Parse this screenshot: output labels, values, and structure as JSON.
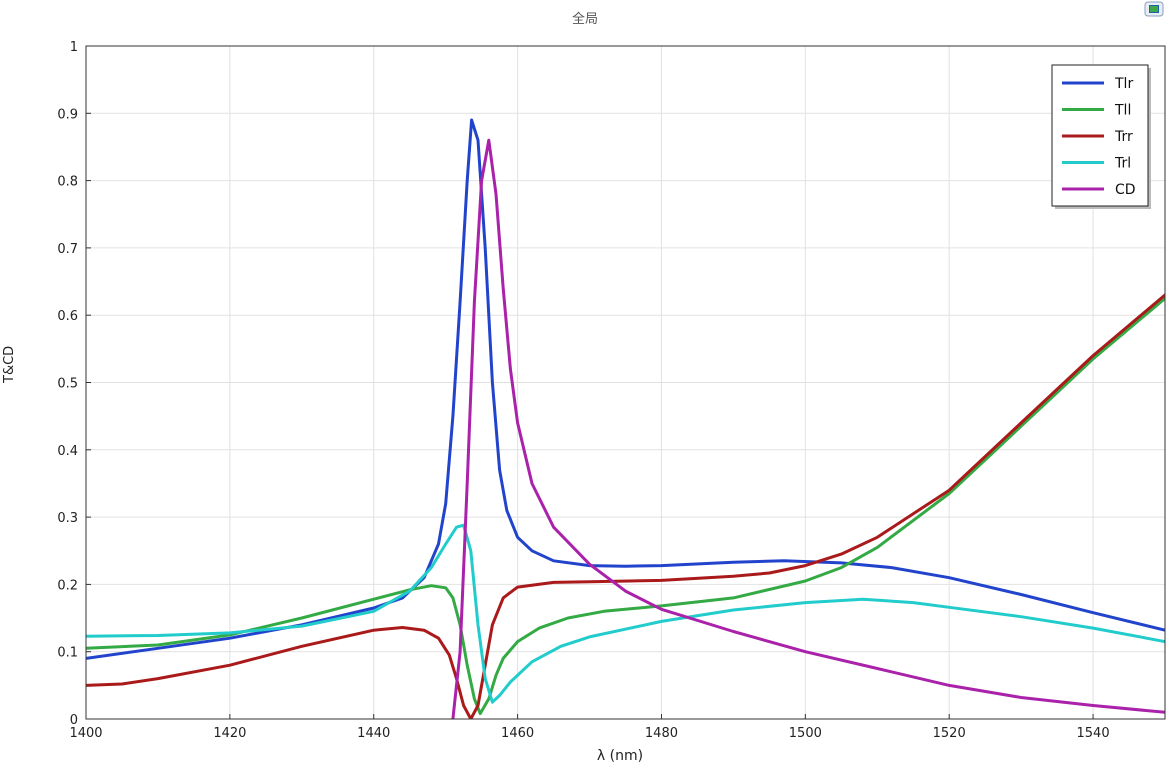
{
  "chart_data": {
    "type": "line",
    "title": "全局",
    "xlabel": "λ (nm)",
    "ylabel": "T&CD",
    "xlim": [
      1400,
      1550
    ],
    "ylim": [
      0,
      1
    ],
    "x_ticks": [
      1400,
      1420,
      1440,
      1460,
      1480,
      1500,
      1520,
      1540
    ],
    "y_ticks": [
      0,
      0.1,
      0.2,
      0.3,
      0.4,
      0.5,
      0.6,
      0.7,
      0.8,
      0.9,
      1
    ],
    "grid": true,
    "legend_position": "top-right",
    "series": [
      {
        "name": "Tlr",
        "color": "#2244cc",
        "points": [
          [
            1400,
            0.09
          ],
          [
            1410,
            0.105
          ],
          [
            1420,
            0.12
          ],
          [
            1430,
            0.14
          ],
          [
            1440,
            0.165
          ],
          [
            1444,
            0.18
          ],
          [
            1447,
            0.21
          ],
          [
            1449,
            0.26
          ],
          [
            1450,
            0.32
          ],
          [
            1451,
            0.45
          ],
          [
            1452,
            0.62
          ],
          [
            1453,
            0.8
          ],
          [
            1453.6,
            0.89
          ],
          [
            1454.5,
            0.86
          ],
          [
            1455.5,
            0.7
          ],
          [
            1456.5,
            0.5
          ],
          [
            1457.5,
            0.37
          ],
          [
            1458.5,
            0.31
          ],
          [
            1460,
            0.27
          ],
          [
            1462,
            0.25
          ],
          [
            1465,
            0.235
          ],
          [
            1470,
            0.228
          ],
          [
            1475,
            0.227
          ],
          [
            1480,
            0.228
          ],
          [
            1490,
            0.233
          ],
          [
            1497,
            0.235
          ],
          [
            1505,
            0.232
          ],
          [
            1512,
            0.225
          ],
          [
            1520,
            0.21
          ],
          [
            1530,
            0.185
          ],
          [
            1540,
            0.158
          ],
          [
            1550,
            0.132
          ]
        ]
      },
      {
        "name": "Tll",
        "color": "#33aa44",
        "points": [
          [
            1400,
            0.105
          ],
          [
            1410,
            0.11
          ],
          [
            1420,
            0.125
          ],
          [
            1430,
            0.15
          ],
          [
            1440,
            0.178
          ],
          [
            1445,
            0.192
          ],
          [
            1448,
            0.198
          ],
          [
            1450,
            0.195
          ],
          [
            1451,
            0.18
          ],
          [
            1452,
            0.14
          ],
          [
            1453,
            0.08
          ],
          [
            1454,
            0.03
          ],
          [
            1454.8,
            0.008
          ],
          [
            1456,
            0.03
          ],
          [
            1457,
            0.065
          ],
          [
            1458,
            0.09
          ],
          [
            1460,
            0.115
          ],
          [
            1463,
            0.135
          ],
          [
            1467,
            0.15
          ],
          [
            1472,
            0.16
          ],
          [
            1480,
            0.168
          ],
          [
            1490,
            0.18
          ],
          [
            1500,
            0.205
          ],
          [
            1505,
            0.225
          ],
          [
            1510,
            0.255
          ],
          [
            1520,
            0.335
          ],
          [
            1530,
            0.435
          ],
          [
            1540,
            0.535
          ],
          [
            1550,
            0.625
          ]
        ]
      },
      {
        "name": "Trr",
        "color": "#aa1a1a",
        "points": [
          [
            1400,
            0.05
          ],
          [
            1405,
            0.052
          ],
          [
            1410,
            0.06
          ],
          [
            1420,
            0.08
          ],
          [
            1430,
            0.108
          ],
          [
            1440,
            0.132
          ],
          [
            1444,
            0.136
          ],
          [
            1447,
            0.132
          ],
          [
            1449,
            0.12
          ],
          [
            1450.5,
            0.095
          ],
          [
            1451.5,
            0.06
          ],
          [
            1452.5,
            0.02
          ],
          [
            1453.5,
            0.0
          ],
          [
            1454.5,
            0.02
          ],
          [
            1455.5,
            0.08
          ],
          [
            1456.5,
            0.14
          ],
          [
            1458,
            0.18
          ],
          [
            1460,
            0.196
          ],
          [
            1465,
            0.203
          ],
          [
            1470,
            0.204
          ],
          [
            1480,
            0.206
          ],
          [
            1490,
            0.212
          ],
          [
            1495,
            0.217
          ],
          [
            1500,
            0.228
          ],
          [
            1505,
            0.245
          ],
          [
            1510,
            0.27
          ],
          [
            1520,
            0.34
          ],
          [
            1530,
            0.44
          ],
          [
            1540,
            0.54
          ],
          [
            1550,
            0.63
          ]
        ]
      },
      {
        "name": "Trl",
        "color": "#22cccc",
        "points": [
          [
            1400,
            0.123
          ],
          [
            1410,
            0.124
          ],
          [
            1420,
            0.128
          ],
          [
            1430,
            0.138
          ],
          [
            1440,
            0.16
          ],
          [
            1445,
            0.19
          ],
          [
            1448,
            0.225
          ],
          [
            1450,
            0.26
          ],
          [
            1451.5,
            0.285
          ],
          [
            1452.5,
            0.288
          ],
          [
            1453.5,
            0.25
          ],
          [
            1454.5,
            0.14
          ],
          [
            1455.5,
            0.06
          ],
          [
            1456.5,
            0.025
          ],
          [
            1457.5,
            0.035
          ],
          [
            1459,
            0.055
          ],
          [
            1462,
            0.085
          ],
          [
            1466,
            0.108
          ],
          [
            1470,
            0.122
          ],
          [
            1480,
            0.145
          ],
          [
            1490,
            0.162
          ],
          [
            1500,
            0.173
          ],
          [
            1508,
            0.178
          ],
          [
            1515,
            0.173
          ],
          [
            1520,
            0.166
          ],
          [
            1530,
            0.152
          ],
          [
            1540,
            0.135
          ],
          [
            1550,
            0.115
          ]
        ]
      },
      {
        "name": "CD",
        "color": "#aa22aa",
        "points": [
          [
            1451,
            0.0
          ],
          [
            1452,
            0.1
          ],
          [
            1453,
            0.35
          ],
          [
            1454,
            0.62
          ],
          [
            1455,
            0.8
          ],
          [
            1456,
            0.86
          ],
          [
            1457,
            0.78
          ],
          [
            1458,
            0.64
          ],
          [
            1459,
            0.52
          ],
          [
            1460,
            0.44
          ],
          [
            1462,
            0.35
          ],
          [
            1465,
            0.285
          ],
          [
            1470,
            0.23
          ],
          [
            1475,
            0.19
          ],
          [
            1480,
            0.163
          ],
          [
            1490,
            0.13
          ],
          [
            1500,
            0.1
          ],
          [
            1510,
            0.075
          ],
          [
            1520,
            0.05
          ],
          [
            1530,
            0.032
          ],
          [
            1540,
            0.02
          ],
          [
            1550,
            0.01
          ]
        ]
      }
    ]
  },
  "corner_icon": "image-snapshot-icon"
}
